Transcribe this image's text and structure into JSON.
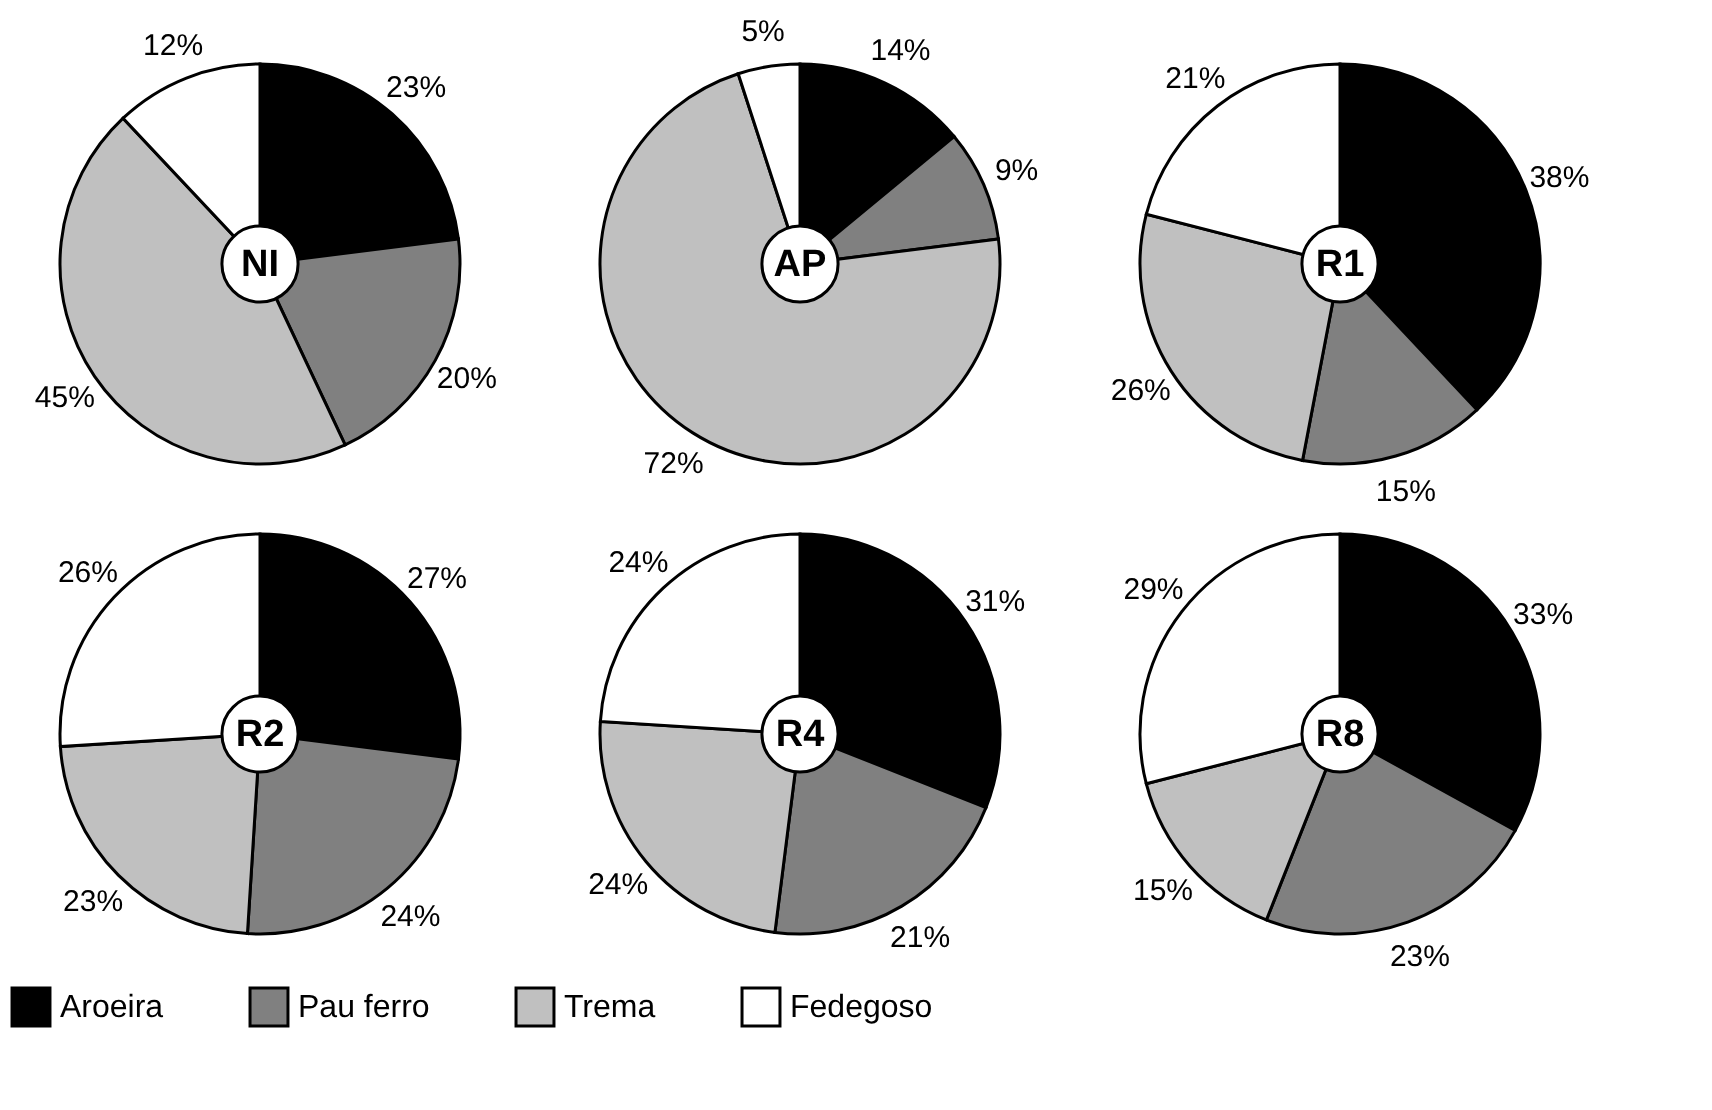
{
  "chart_data": [
    {
      "type": "pie",
      "title": "NI",
      "categories": [
        "Aroeira",
        "Pau ferro",
        "Trema",
        "Fedegoso"
      ],
      "values": [
        23,
        20,
        45,
        12
      ],
      "value_labels": [
        "23%",
        "20%",
        "45%",
        "12%"
      ],
      "colors": [
        "#000000",
        "#808080",
        "#c0c0c0",
        "#ffffff"
      ],
      "legend": "bottom"
    },
    {
      "type": "pie",
      "title": "AP",
      "categories": [
        null,
        null,
        null,
        null
      ],
      "values": [
        14,
        9,
        72,
        5
      ],
      "value_labels": [
        "14%",
        "9%",
        "72%",
        "5%"
      ],
      "colors": [
        "#000000",
        "#808080",
        "#c0c0c0",
        "#ffffff"
      ]
    },
    {
      "type": "pie",
      "title": "R1",
      "categories": [
        null,
        null,
        null,
        null
      ],
      "values": [
        38,
        15,
        26,
        21
      ],
      "value_labels": [
        "38%",
        "15%",
        "26%",
        "21%"
      ],
      "colors": [
        "#000000",
        "#808080",
        "#c0c0c0",
        "#ffffff"
      ]
    },
    {
      "type": "pie",
      "title": "R2",
      "categories": [
        null,
        null,
        null,
        null
      ],
      "values": [
        27,
        24,
        23,
        26
      ],
      "value_labels": [
        "27%",
        "24%",
        "23%",
        "26%"
      ],
      "colors": [
        "#000000",
        "#808080",
        "#c0c0c0",
        "#ffffff"
      ]
    },
    {
      "type": "pie",
      "title": "R4",
      "categories": [
        null,
        null,
        null,
        null
      ],
      "values": [
        31,
        21,
        24,
        24
      ],
      "value_labels": [
        "31%",
        "21%",
        "24%",
        "24%"
      ],
      "colors": [
        "#000000",
        "#808080",
        "#c0c0c0",
        "#ffffff"
      ]
    },
    {
      "type": "pie",
      "title": "R8",
      "categories": [
        null,
        null,
        null,
        null
      ],
      "values": [
        33,
        23,
        15,
        29
      ],
      "value_labels": [
        "33%",
        "23%",
        "15%",
        "29%"
      ],
      "colors": [
        "#000000",
        "#808080",
        "#c0c0c0",
        "#ffffff"
      ]
    }
  ]
}
